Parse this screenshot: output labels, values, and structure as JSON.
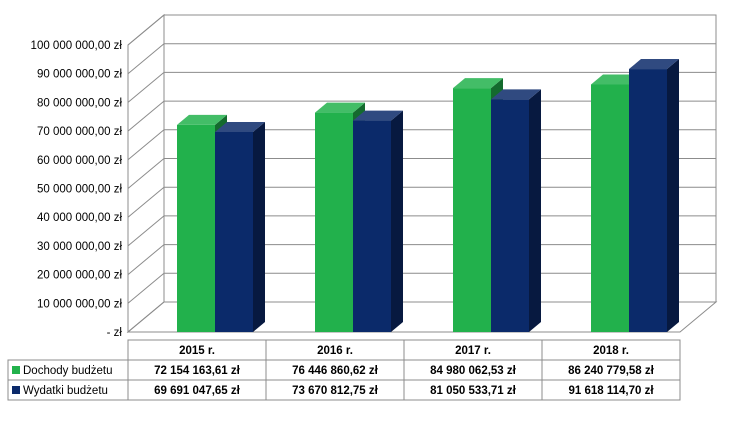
{
  "chart_data": {
    "type": "bar",
    "categories": [
      "2015 r.",
      "2016 r.",
      "2017 r.",
      "2018 r."
    ],
    "series": [
      {
        "name": "Dochody budżetu",
        "values": [
          72154163.61,
          76446860.62,
          84980062.53,
          86240779.58
        ],
        "labels": [
          "72 154 163,61 zł",
          "76 446 860,62 zł",
          "84 980 062,53 zł",
          "86 240 779,58 zł"
        ],
        "color": "#22b14c"
      },
      {
        "name": "Wydatki budżetu",
        "values": [
          69691047.65,
          73670812.75,
          81050533.71,
          91618114.7
        ],
        "labels": [
          "69 691 047,65 zł",
          "73 670 812,75 zł",
          "81 050 533,71 zł",
          "91 618 114,70 zł"
        ],
        "color": "#0b2a6a"
      }
    ],
    "ylim": [
      0,
      100000000
    ],
    "y_ticks": [
      0,
      10000000,
      20000000,
      30000000,
      40000000,
      50000000,
      60000000,
      70000000,
      80000000,
      90000000,
      100000000
    ],
    "y_tick_labels": [
      "-  zł",
      "10 000 000,00 zł",
      "20 000 000,00 zł",
      "30 000 000,00 zł",
      "40 000 000,00 zł",
      "50 000 000,00 zł",
      "60 000 000,00 zł",
      "70 000 000,00 zł",
      "80 000 000,00 zł",
      "90 000 000,00 zł",
      "100 000 000,00 zł"
    ],
    "grid": true,
    "style": "3d-clustered-column",
    "legend": "data-table"
  }
}
